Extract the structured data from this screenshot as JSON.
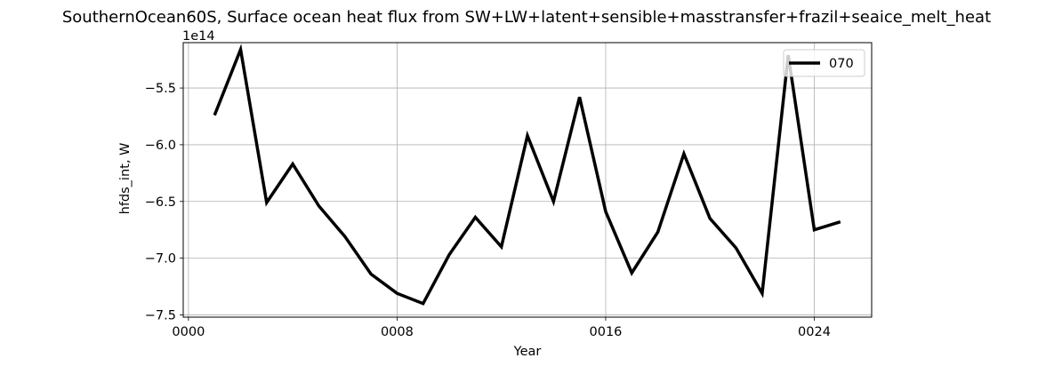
{
  "chart_data": {
    "type": "line",
    "title": "SouthernOcean60S, Surface ocean heat flux from SW+LW+latent+sensible+masstransfer+frazil+seaice_melt_heat",
    "xlabel": "Year",
    "ylabel": "hfds_int, W",
    "y_offset_label": "1e14",
    "xlim": [
      -0.2,
      26.2
    ],
    "ylim": [
      -7.52,
      -5.1
    ],
    "x_ticks": [
      0,
      8,
      16,
      24
    ],
    "x_tick_labels": [
      "0000",
      "0008",
      "0016",
      "0024"
    ],
    "y_ticks": [
      -7.5,
      -7.0,
      -6.5,
      -6.0,
      -5.5
    ],
    "y_tick_labels": [
      "−7.5",
      "−7.0",
      "−6.5",
      "−6.0",
      "−5.5"
    ],
    "grid": true,
    "legend_position": "top-right",
    "series": [
      {
        "name": "070",
        "color": "#000000",
        "x": [
          1,
          2,
          3,
          4,
          5,
          6,
          7,
          8,
          9,
          10,
          11,
          12,
          13,
          14,
          15,
          16,
          17,
          18,
          19,
          20,
          21,
          22,
          23,
          24,
          25
        ],
        "y": [
          -5.74,
          -5.16,
          -6.51,
          -6.17,
          -6.54,
          -6.81,
          -7.14,
          -7.31,
          -7.4,
          -6.97,
          -6.64,
          -6.9,
          -5.92,
          -6.5,
          -5.58,
          -6.59,
          -7.13,
          -6.77,
          -6.08,
          -6.65,
          -6.91,
          -7.31,
          -5.21,
          -6.75,
          -6.68
        ]
      }
    ]
  }
}
